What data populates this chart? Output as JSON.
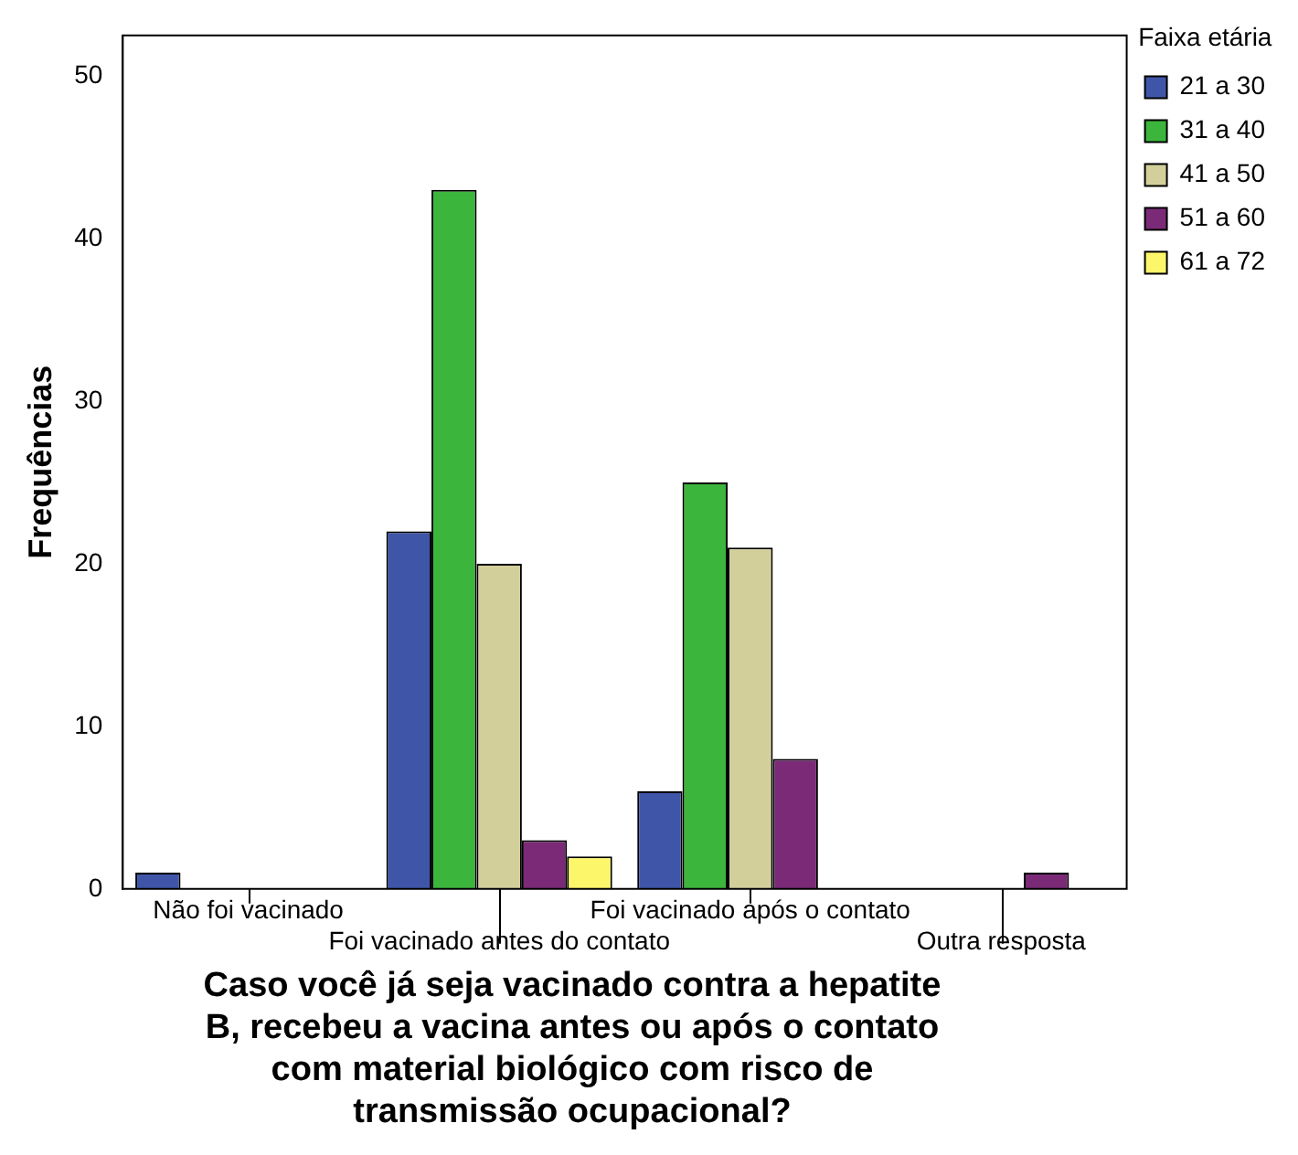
{
  "chart_data": {
    "type": "bar",
    "xlabel": "Caso você já seja vacinado contra a hepatite B, recebeu a vacina antes ou após o contato com material biológico com risco de transmissão ocupacional?",
    "ylabel": "Frequências",
    "legend_title": "Faixa etária",
    "categories": [
      "Não foi vacinado",
      "Foi vacinado antes do contato",
      "Foi vacinado após o contato",
      "Outra resposta"
    ],
    "series": [
      {
        "name": "21 a 30",
        "color": "#3f56a8",
        "values": [
          1,
          22,
          6,
          null
        ]
      },
      {
        "name": "31 a 40",
        "color": "#3cb53c",
        "values": [
          null,
          43,
          25,
          null
        ]
      },
      {
        "name": "41 a 50",
        "color": "#d3cf9b",
        "values": [
          null,
          20,
          21,
          null
        ]
      },
      {
        "name": "51 a 60",
        "color": "#7a2a77",
        "values": [
          null,
          3,
          8,
          1
        ]
      },
      {
        "name": "61 a 72",
        "color": "#fcf66a",
        "values": [
          null,
          2,
          null,
          null
        ]
      }
    ],
    "ylim": [
      0,
      52.5
    ],
    "yticks": [
      0,
      10,
      20,
      30,
      40,
      50
    ],
    "grid": false,
    "legend": "top right"
  }
}
